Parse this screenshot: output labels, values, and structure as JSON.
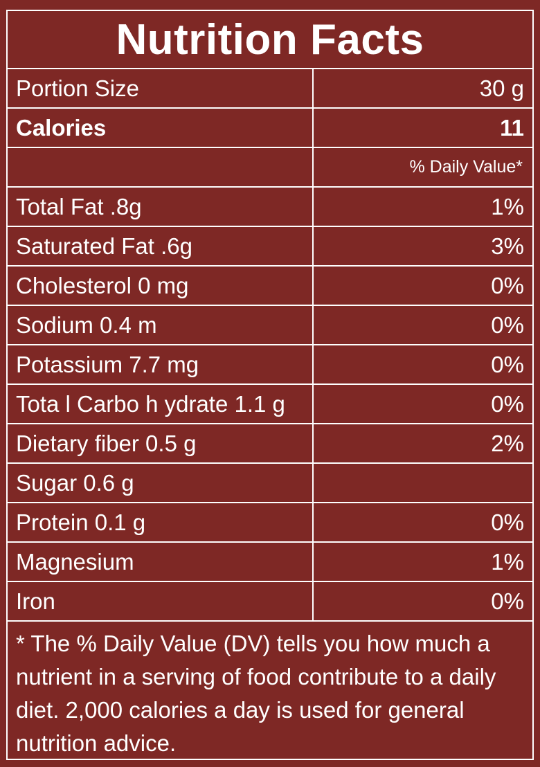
{
  "title": "Nutrition Facts",
  "portion": {
    "label": "Portion Size",
    "value": "30 g"
  },
  "calories": {
    "label": "Calories",
    "value": "11"
  },
  "dv_header": "% Daily Value*",
  "nutrients": [
    {
      "label": "Total Fat .8g",
      "dv": "1%"
    },
    {
      "label": "Saturated Fat .6g",
      "dv": "3%"
    },
    {
      "label": "Cholesterol 0 mg",
      "dv": "0%"
    },
    {
      "label": "Sodium 0.4 m",
      "dv": "0%"
    },
    {
      "label": "Potassium 7.7 mg",
      "dv": "0%"
    },
    {
      "label": "Tota l Carbo h ydrate 1.1  g",
      "dv": "0%"
    },
    {
      "label": "Dietary fiber 0.5 g",
      "dv": "2%"
    },
    {
      "label": "Sugar 0.6 g",
      "dv": ""
    },
    {
      "label": "Protein 0.1 g",
      "dv": "0%"
    },
    {
      "label": "Magnesium",
      "dv": "1%"
    },
    {
      "label": "Iron",
      "dv": "0%"
    }
  ],
  "footnote": "* The % Daily Value (DV) tells you how much a nutrient in a serving of food contribute to a daily diet. 2,000 calories a day is used for general nutrition advice.",
  "colors": {
    "background": "#7e2825",
    "text": "#ffffff",
    "rules": "#ffffff"
  }
}
